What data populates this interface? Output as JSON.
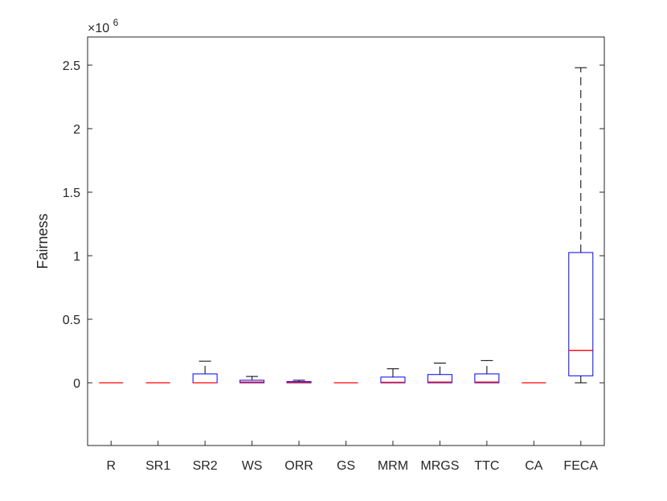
{
  "chart_data": {
    "type": "box",
    "title": "",
    "xlabel": "",
    "ylabel": "Fairness",
    "y_exponent_label": "×10",
    "y_exponent_power": "6",
    "y_scale": 1000000,
    "ylim": [
      -0.5,
      2.75
    ],
    "y_ticks": [
      0,
      0.5,
      1,
      1.5,
      2,
      2.5
    ],
    "y_tick_labels": [
      "0",
      "0.5",
      "1",
      "1.5",
      "2",
      "2.5"
    ],
    "grid": false,
    "categories": [
      "R",
      "SR1",
      "SR2",
      "WS",
      "ORR",
      "GS",
      "MRM",
      "MRGS",
      "TTC",
      "CA",
      "FECA"
    ],
    "boxes": [
      {
        "category": "R",
        "whisker_low": 0,
        "q1": 0,
        "median": 0,
        "q3": 0,
        "whisker_high": 0
      },
      {
        "category": "SR1",
        "whisker_low": 0,
        "q1": 0,
        "median": 0,
        "q3": 0,
        "whisker_high": 0
      },
      {
        "category": "SR2",
        "whisker_low": 0,
        "q1": 0,
        "median": 0,
        "q3": 0.07,
        "whisker_high": 0.17
      },
      {
        "category": "WS",
        "whisker_low": 0,
        "q1": 0,
        "median": 0.005,
        "q3": 0.02,
        "whisker_high": 0.05
      },
      {
        "category": "ORR",
        "whisker_low": 0,
        "q1": 0,
        "median": 0.004,
        "q3": 0.01,
        "whisker_high": 0.02
      },
      {
        "category": "GS",
        "whisker_low": 0,
        "q1": 0,
        "median": 0,
        "q3": 0,
        "whisker_high": 0
      },
      {
        "category": "MRM",
        "whisker_low": 0,
        "q1": 0,
        "median": 0.004,
        "q3": 0.045,
        "whisker_high": 0.11
      },
      {
        "category": "MRGS",
        "whisker_low": 0,
        "q1": 0,
        "median": 0.005,
        "q3": 0.065,
        "whisker_high": 0.155
      },
      {
        "category": "TTC",
        "whisker_low": 0,
        "q1": 0,
        "median": 0.005,
        "q3": 0.07,
        "whisker_high": 0.175
      },
      {
        "category": "CA",
        "whisker_low": 0,
        "q1": 0,
        "median": 0,
        "q3": 0,
        "whisker_high": 0
      },
      {
        "category": "FECA",
        "whisker_low": 0,
        "q1": 0.055,
        "median": 0.255,
        "q3": 1.025,
        "whisker_high": 2.48
      }
    ],
    "colors": {
      "box": "#0000ff",
      "median": "#ff0000",
      "whisker": "#000000",
      "axes": "#262626"
    }
  }
}
